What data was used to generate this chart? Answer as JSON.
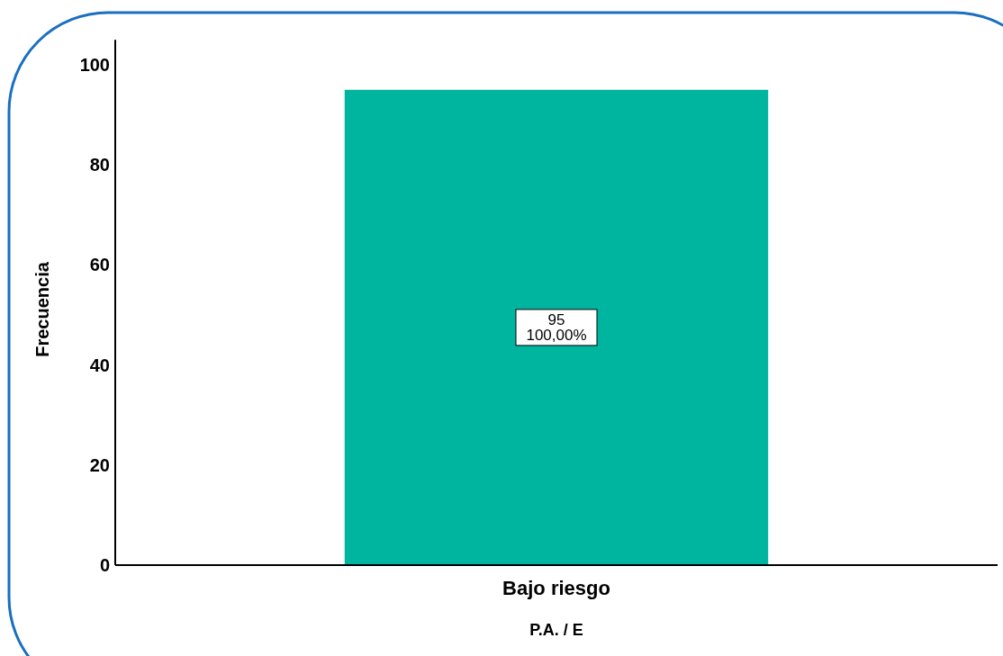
{
  "chart_data": {
    "type": "bar",
    "xlabel": "P.A. / E",
    "ylabel": "Frecuencia",
    "categories": [
      "Bajo riesgo"
    ],
    "values": [
      95
    ],
    "color": "#00b5a0",
    "data_labels": true,
    "annotations": [
      "100,00%"
    ],
    "ylim": [
      0,
      105
    ],
    "yticks": [
      0,
      20,
      40,
      60,
      80,
      100
    ],
    "grid": false
  }
}
